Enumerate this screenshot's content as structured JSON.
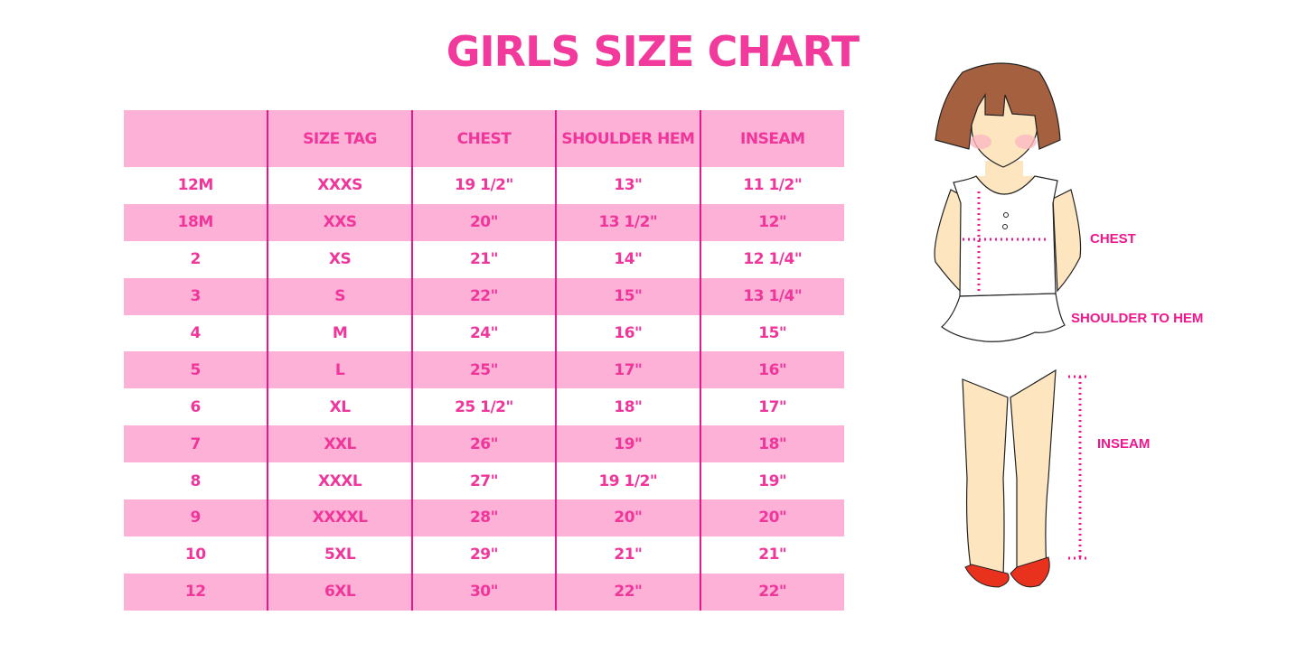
{
  "title": "GIRLS SIZE CHART",
  "colors": {
    "accent": "#f0359b",
    "row_pink": "#fdb1d6",
    "divider": "#e8178a"
  },
  "table": {
    "headers": [
      "",
      "SIZE TAG",
      "CHEST",
      "SHOULDER HEM",
      "INSEAM"
    ],
    "rows": [
      [
        "12M",
        "XXXS",
        "19 1/2\"",
        "13\"",
        "11 1/2\""
      ],
      [
        "18M",
        "XXS",
        "20\"",
        "13 1/2\"",
        "12\""
      ],
      [
        "2",
        "XS",
        "21\"",
        "14\"",
        "12 1/4\""
      ],
      [
        "3",
        "S",
        "22\"",
        "15\"",
        "13 1/4\""
      ],
      [
        "4",
        "M",
        "24\"",
        "16\"",
        "15\""
      ],
      [
        "5",
        "L",
        "25\"",
        "17\"",
        "16\""
      ],
      [
        "6",
        "XL",
        "25 1/2\"",
        "18\"",
        "17\""
      ],
      [
        "7",
        "XXL",
        "26\"",
        "19\"",
        "18\""
      ],
      [
        "8",
        "XXXL",
        "27\"",
        "19 1/2\"",
        "19\""
      ],
      [
        "9",
        "XXXXL",
        "28\"",
        "20\"",
        "20\""
      ],
      [
        "10",
        "5XL",
        "29\"",
        "21\"",
        "21\""
      ],
      [
        "12",
        "6XL",
        "30\"",
        "22\"",
        "22\""
      ]
    ]
  },
  "illustration": {
    "chest_label": "CHEST",
    "shoulder_label": "SHOULDER TO HEM",
    "inseam_label": "INSEAM"
  }
}
